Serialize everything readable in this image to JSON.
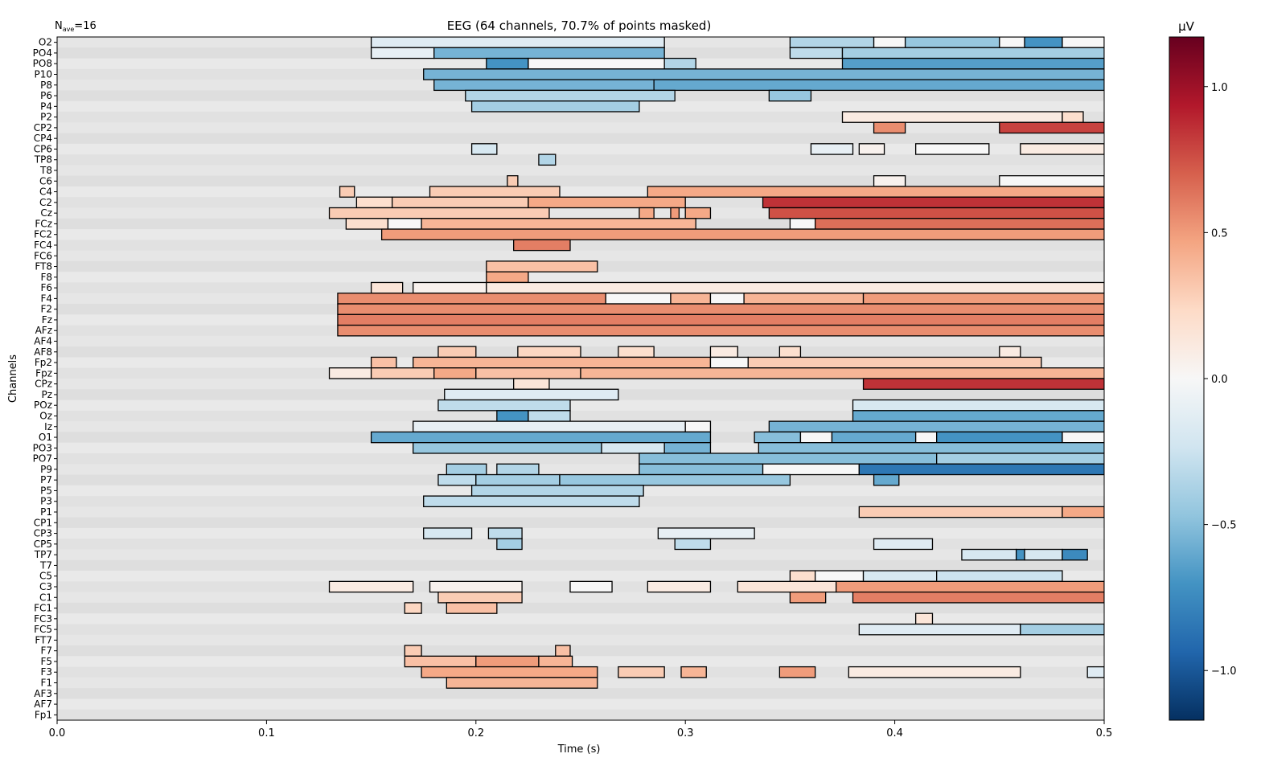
{
  "chart_data": {
    "type": "heatmap",
    "title": "EEG (64 channels, 70.7% of points masked)",
    "annotation": "N",
    "annotation_sub": "ave",
    "annotation_value": "=16",
    "xlabel": "Time (s)",
    "ylabel": "Channels",
    "colorbar_label": "µV",
    "xlim": [
      0.0,
      0.5
    ],
    "x_ticks": [
      0.0,
      0.1,
      0.2,
      0.3,
      0.4,
      0.5
    ],
    "x_tick_labels": [
      "0.0",
      "0.1",
      "0.2",
      "0.3",
      "0.4",
      "0.5"
    ],
    "clim": [
      -1.17,
      1.17
    ],
    "colorbar_ticks": [
      1.0,
      0.5,
      0.0,
      -0.5,
      -1.0
    ],
    "colorbar_tick_labels": [
      "1.0",
      "0.5",
      "0.0",
      "−0.5",
      "−1.0"
    ],
    "colormap": [
      "#053061",
      "#2166ac",
      "#4393c3",
      "#92c5de",
      "#d1e5f0",
      "#f7f7f7",
      "#fddbc7",
      "#f4a582",
      "#d6604d",
      "#b2182b",
      "#67001f"
    ],
    "masked_color": "#dcdcdc",
    "contour_color": "#000000",
    "channels": [
      "O2",
      "PO4",
      "PO8",
      "P10",
      "P8",
      "P6",
      "P4",
      "P2",
      "CP2",
      "CP4",
      "CP6",
      "TP8",
      "T8",
      "C6",
      "C4",
      "C2",
      "Cz",
      "FCz",
      "FC2",
      "FC4",
      "FC6",
      "FT8",
      "F8",
      "F6",
      "F4",
      "F2",
      "Fz",
      "AFz",
      "AF4",
      "AF8",
      "Fp2",
      "Fpz",
      "CPz",
      "Pz",
      "POz",
      "Oz",
      "Iz",
      "O1",
      "PO3",
      "PO7",
      "P9",
      "P7",
      "P5",
      "P3",
      "P1",
      "CP1",
      "CP3",
      "CP5",
      "TP7",
      "T7",
      "C5",
      "C3",
      "C1",
      "FC1",
      "FC3",
      "FC5",
      "FT7",
      "F7",
      "F5",
      "F3",
      "F1",
      "AF3",
      "AF7",
      "Fp1"
    ],
    "significant_segments": [
      {
        "channel": "O2",
        "segments": [
          [
            0.15,
            0.29,
            -0.15
          ],
          [
            0.35,
            0.39,
            -0.35
          ],
          [
            0.39,
            0.405,
            0.0
          ],
          [
            0.405,
            0.45,
            -0.45
          ],
          [
            0.45,
            0.462,
            0.0
          ],
          [
            0.462,
            0.48,
            -0.7
          ],
          [
            0.48,
            0.5,
            0.0
          ]
        ]
      },
      {
        "channel": "PO4",
        "segments": [
          [
            0.15,
            0.18,
            -0.1
          ],
          [
            0.18,
            0.29,
            -0.55
          ],
          [
            0.35,
            0.375,
            -0.3
          ],
          [
            0.375,
            0.5,
            -0.4
          ]
        ]
      },
      {
        "channel": "PO8",
        "segments": [
          [
            0.205,
            0.225,
            -0.7
          ],
          [
            0.225,
            0.29,
            0.0
          ],
          [
            0.29,
            0.305,
            -0.35
          ],
          [
            0.375,
            0.5,
            -0.65
          ]
        ]
      },
      {
        "channel": "P10",
        "segments": [
          [
            0.175,
            0.5,
            -0.55
          ]
        ]
      },
      {
        "channel": "P8",
        "segments": [
          [
            0.18,
            0.285,
            -0.55
          ],
          [
            0.285,
            0.5,
            -0.6
          ]
        ]
      },
      {
        "channel": "P6",
        "segments": [
          [
            0.195,
            0.295,
            -0.35
          ],
          [
            0.34,
            0.36,
            -0.45
          ]
        ]
      },
      {
        "channel": "P4",
        "segments": [
          [
            0.198,
            0.278,
            -0.4
          ]
        ]
      },
      {
        "channel": "P2",
        "segments": [
          [
            0.375,
            0.48,
            0.1
          ],
          [
            0.48,
            0.49,
            0.2
          ]
        ]
      },
      {
        "channel": "CP2",
        "segments": [
          [
            0.39,
            0.405,
            0.55
          ],
          [
            0.45,
            0.5,
            0.8
          ]
        ]
      },
      {
        "channel": "CP6",
        "segments": [
          [
            0.198,
            0.21,
            -0.2
          ],
          [
            0.36,
            0.38,
            -0.1
          ],
          [
            0.383,
            0.395,
            0.05
          ],
          [
            0.41,
            0.445,
            0.0
          ],
          [
            0.46,
            0.5,
            0.1
          ]
        ]
      },
      {
        "channel": "TP8",
        "segments": [
          [
            0.23,
            0.238,
            -0.35
          ]
        ]
      },
      {
        "channel": "C6",
        "segments": [
          [
            0.215,
            0.22,
            0.3
          ],
          [
            0.39,
            0.405,
            0.05
          ],
          [
            0.45,
            0.5,
            0.0
          ]
        ]
      },
      {
        "channel": "C4",
        "segments": [
          [
            0.135,
            0.142,
            0.3
          ],
          [
            0.178,
            0.24,
            0.3
          ],
          [
            0.282,
            0.5,
            0.45
          ]
        ]
      },
      {
        "channel": "C2",
        "segments": [
          [
            0.143,
            0.16,
            0.2
          ],
          [
            0.16,
            0.225,
            0.3
          ],
          [
            0.225,
            0.3,
            0.45
          ],
          [
            0.337,
            0.5,
            0.85
          ]
        ]
      },
      {
        "channel": "Cz",
        "segments": [
          [
            0.13,
            0.235,
            0.3
          ],
          [
            0.278,
            0.285,
            0.45
          ],
          [
            0.293,
            0.297,
            0.5
          ],
          [
            0.3,
            0.312,
            0.45
          ],
          [
            0.34,
            0.5,
            0.75
          ]
        ]
      },
      {
        "channel": "FCz",
        "segments": [
          [
            0.138,
            0.158,
            0.2
          ],
          [
            0.158,
            0.174,
            0.0
          ],
          [
            0.174,
            0.305,
            0.4
          ],
          [
            0.35,
            0.362,
            0.0
          ],
          [
            0.362,
            0.5,
            0.65
          ]
        ]
      },
      {
        "channel": "FC2",
        "segments": [
          [
            0.155,
            0.5,
            0.5
          ]
        ]
      },
      {
        "channel": "FC4",
        "segments": [
          [
            0.218,
            0.245,
            0.6
          ]
        ]
      },
      {
        "channel": "FT8",
        "segments": [
          [
            0.205,
            0.258,
            0.35
          ]
        ]
      },
      {
        "channel": "F8",
        "segments": [
          [
            0.205,
            0.225,
            0.45
          ]
        ]
      },
      {
        "channel": "F6",
        "segments": [
          [
            0.15,
            0.165,
            0.15
          ],
          [
            0.17,
            0.205,
            0.05
          ],
          [
            0.205,
            0.5,
            0.1
          ]
        ]
      },
      {
        "channel": "F4",
        "segments": [
          [
            0.134,
            0.262,
            0.55
          ],
          [
            0.262,
            0.293,
            0.0
          ],
          [
            0.293,
            0.312,
            0.4
          ],
          [
            0.312,
            0.328,
            0.0
          ],
          [
            0.328,
            0.385,
            0.4
          ],
          [
            0.385,
            0.5,
            0.5
          ]
        ]
      },
      {
        "channel": "F2",
        "segments": [
          [
            0.134,
            0.5,
            0.55
          ]
        ]
      },
      {
        "channel": "Fz",
        "segments": [
          [
            0.134,
            0.5,
            0.6
          ]
        ]
      },
      {
        "channel": "AFz",
        "segments": [
          [
            0.134,
            0.5,
            0.55
          ]
        ]
      },
      {
        "channel": "AF8",
        "segments": [
          [
            0.182,
            0.2,
            0.3
          ],
          [
            0.22,
            0.25,
            0.25
          ],
          [
            0.268,
            0.285,
            0.2
          ],
          [
            0.312,
            0.325,
            0.1
          ],
          [
            0.345,
            0.355,
            0.2
          ],
          [
            0.45,
            0.46,
            0.1
          ]
        ]
      },
      {
        "channel": "Fp2",
        "segments": [
          [
            0.15,
            0.162,
            0.35
          ],
          [
            0.17,
            0.312,
            0.4
          ],
          [
            0.312,
            0.33,
            0.0
          ],
          [
            0.33,
            0.47,
            0.3
          ]
        ]
      },
      {
        "channel": "Fpz",
        "segments": [
          [
            0.13,
            0.15,
            0.1
          ],
          [
            0.15,
            0.18,
            0.3
          ],
          [
            0.18,
            0.2,
            0.45
          ],
          [
            0.2,
            0.25,
            0.35
          ],
          [
            0.25,
            0.5,
            0.4
          ]
        ]
      },
      {
        "channel": "CPz",
        "segments": [
          [
            0.218,
            0.235,
            0.15
          ],
          [
            0.385,
            0.5,
            0.85
          ]
        ]
      },
      {
        "channel": "Pz",
        "segments": [
          [
            0.185,
            0.268,
            -0.15
          ]
        ]
      },
      {
        "channel": "POz",
        "segments": [
          [
            0.182,
            0.245,
            -0.3
          ],
          [
            0.38,
            0.5,
            -0.2
          ]
        ]
      },
      {
        "channel": "Oz",
        "segments": [
          [
            0.21,
            0.225,
            -0.7
          ],
          [
            0.225,
            0.245,
            -0.3
          ],
          [
            0.38,
            0.5,
            -0.6
          ]
        ]
      },
      {
        "channel": "Iz",
        "segments": [
          [
            0.17,
            0.3,
            -0.1
          ],
          [
            0.3,
            0.312,
            0.0
          ],
          [
            0.34,
            0.5,
            -0.55
          ]
        ]
      },
      {
        "channel": "O1",
        "segments": [
          [
            0.15,
            0.312,
            -0.6
          ],
          [
            0.333,
            0.355,
            -0.5
          ],
          [
            0.355,
            0.37,
            0.0
          ],
          [
            0.37,
            0.41,
            -0.6
          ],
          [
            0.41,
            0.42,
            0.0
          ],
          [
            0.42,
            0.48,
            -0.7
          ],
          [
            0.48,
            0.5,
            0.0
          ]
        ]
      },
      {
        "channel": "PO3",
        "segments": [
          [
            0.17,
            0.26,
            -0.45
          ],
          [
            0.26,
            0.29,
            -0.2
          ],
          [
            0.29,
            0.312,
            -0.55
          ],
          [
            0.335,
            0.5,
            -0.5
          ]
        ]
      },
      {
        "channel": "PO7",
        "segments": [
          [
            0.278,
            0.42,
            -0.5
          ],
          [
            0.42,
            0.5,
            -0.4
          ]
        ]
      },
      {
        "channel": "P9",
        "segments": [
          [
            0.186,
            0.205,
            -0.4
          ],
          [
            0.21,
            0.23,
            -0.35
          ],
          [
            0.278,
            0.337,
            -0.5
          ],
          [
            0.337,
            0.383,
            0.0
          ],
          [
            0.383,
            0.5,
            -0.85
          ]
        ]
      },
      {
        "channel": "P7",
        "segments": [
          [
            0.182,
            0.2,
            -0.3
          ],
          [
            0.2,
            0.24,
            -0.4
          ],
          [
            0.24,
            0.35,
            -0.45
          ],
          [
            0.39,
            0.402,
            -0.6
          ]
        ]
      },
      {
        "channel": "P5",
        "segments": [
          [
            0.198,
            0.28,
            -0.35
          ]
        ]
      },
      {
        "channel": "P3",
        "segments": [
          [
            0.175,
            0.278,
            -0.3
          ]
        ]
      },
      {
        "channel": "P1",
        "segments": [
          [
            0.383,
            0.48,
            0.3
          ],
          [
            0.48,
            0.5,
            0.45
          ]
        ]
      },
      {
        "channel": "CP3",
        "segments": [
          [
            0.175,
            0.198,
            -0.2
          ],
          [
            0.206,
            0.222,
            -0.3
          ],
          [
            0.287,
            0.333,
            -0.1
          ]
        ]
      },
      {
        "channel": "CP5",
        "segments": [
          [
            0.21,
            0.222,
            -0.4
          ],
          [
            0.295,
            0.312,
            -0.3
          ],
          [
            0.39,
            0.418,
            -0.15
          ]
        ]
      },
      {
        "channel": "TP7",
        "segments": [
          [
            0.432,
            0.458,
            -0.2
          ],
          [
            0.458,
            0.462,
            -0.7
          ],
          [
            0.462,
            0.48,
            -0.2
          ],
          [
            0.48,
            0.492,
            -0.75
          ]
        ]
      },
      {
        "channel": "C5",
        "segments": [
          [
            0.35,
            0.362,
            0.2
          ],
          [
            0.362,
            0.385,
            0.0
          ],
          [
            0.385,
            0.42,
            -0.2
          ],
          [
            0.42,
            0.48,
            -0.25
          ]
        ]
      },
      {
        "channel": "C3",
        "segments": [
          [
            0.13,
            0.17,
            0.1
          ],
          [
            0.178,
            0.222,
            0.05
          ],
          [
            0.245,
            0.265,
            0.0
          ],
          [
            0.282,
            0.312,
            0.1
          ],
          [
            0.325,
            0.372,
            0.15
          ],
          [
            0.372,
            0.5,
            0.5
          ]
        ]
      },
      {
        "channel": "C1",
        "segments": [
          [
            0.182,
            0.222,
            0.3
          ],
          [
            0.35,
            0.367,
            0.5
          ],
          [
            0.38,
            0.5,
            0.6
          ]
        ]
      },
      {
        "channel": "FC1",
        "segments": [
          [
            0.166,
            0.174,
            0.25
          ],
          [
            0.186,
            0.21,
            0.35
          ]
        ]
      },
      {
        "channel": "FC3",
        "segments": [
          [
            0.41,
            0.418,
            0.15
          ]
        ]
      },
      {
        "channel": "FC5",
        "segments": [
          [
            0.383,
            0.46,
            -0.15
          ],
          [
            0.46,
            0.5,
            -0.4
          ]
        ]
      },
      {
        "channel": "F7",
        "segments": [
          [
            0.166,
            0.174,
            0.3
          ],
          [
            0.238,
            0.245,
            0.35
          ]
        ]
      },
      {
        "channel": "F5",
        "segments": [
          [
            0.166,
            0.2,
            0.35
          ],
          [
            0.2,
            0.23,
            0.5
          ],
          [
            0.23,
            0.246,
            0.4
          ]
        ]
      },
      {
        "channel": "F3",
        "segments": [
          [
            0.174,
            0.258,
            0.45
          ],
          [
            0.268,
            0.29,
            0.3
          ],
          [
            0.298,
            0.31,
            0.4
          ],
          [
            0.345,
            0.362,
            0.5
          ],
          [
            0.378,
            0.46,
            0.1
          ],
          [
            0.492,
            0.5,
            -0.15
          ]
        ]
      },
      {
        "channel": "F1",
        "segments": [
          [
            0.186,
            0.258,
            0.4
          ]
        ]
      }
    ]
  }
}
